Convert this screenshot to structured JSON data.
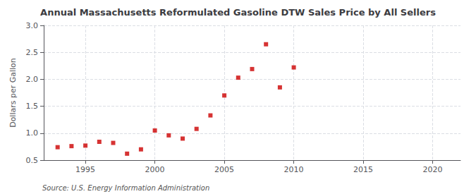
{
  "chart_data": {
    "type": "scatter",
    "title": "Annual Massachusetts Reformulated Gasoline DTW Sales Price by All Sellers",
    "ylabel": "Dollars per Gallon",
    "annotations": [
      "Source: U.S. Energy Information Administration"
    ],
    "x": [
      1993,
      1994,
      1995,
      1996,
      1997,
      1998,
      1999,
      2000,
      2001,
      2002,
      2003,
      2004,
      2005,
      2006,
      2007,
      2008,
      2009,
      2010
    ],
    "values": [
      0.74,
      0.76,
      0.77,
      0.84,
      0.82,
      0.62,
      0.7,
      1.05,
      0.96,
      0.9,
      1.08,
      1.33,
      1.7,
      2.03,
      2.19,
      2.65,
      1.85,
      2.22
    ],
    "color": "#cc0000",
    "marker": "square",
    "xlim": [
      1992,
      2022
    ],
    "ylim": [
      0.5,
      3.0
    ],
    "xticks": [
      1995,
      2000,
      2005,
      2010,
      2015,
      2020
    ],
    "yticks": [
      0.5,
      {
        "value": 1.0,
        "label": "1.0"
      },
      1.5,
      {
        "value": 2.0,
        "label": "2.0"
      },
      2.5,
      {
        "value": 3.0,
        "label": "3.0"
      }
    ],
    "grid": true
  }
}
